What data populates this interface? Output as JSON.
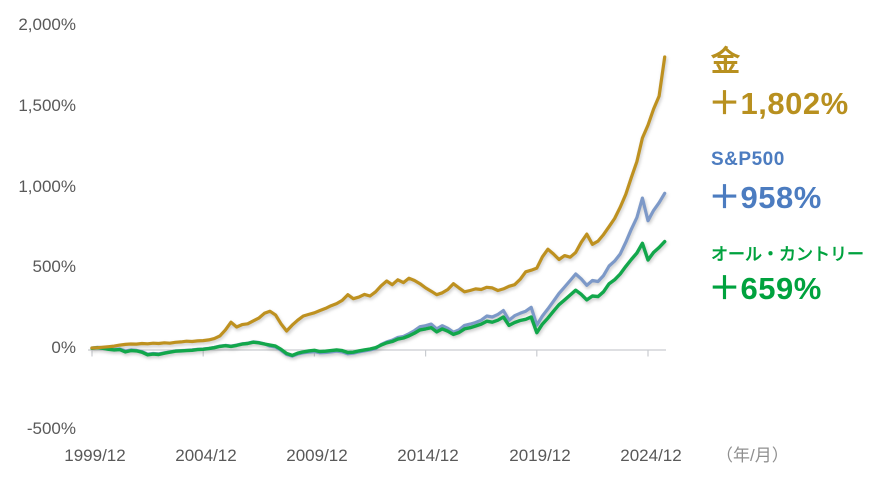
{
  "chart_data": {
    "type": "line",
    "title": "",
    "x_start": 2000.0,
    "x_step_years": 0.25,
    "x_axis": {
      "tick_labels": [
        "1999/12",
        "2004/12",
        "2009/12",
        "2014/12",
        "2019/12",
        "2024/12"
      ],
      "unit_label": "（年/月）"
    },
    "y_axis": {
      "range": [
        -500,
        2000
      ],
      "ticks": [
        {
          "value": 2000,
          "label": "2,000%"
        },
        {
          "value": 1500,
          "label": "1,500%"
        },
        {
          "value": 1000,
          "label": "1,000%"
        },
        {
          "value": 500,
          "label": "500%"
        },
        {
          "value": 0,
          "label": "0%"
        },
        {
          "value": -500,
          "label": "-500%"
        }
      ]
    },
    "grid": "zero-baseline-only",
    "legend_position": "right",
    "series": [
      {
        "name": "金",
        "gain_label": "＋1,802%",
        "line_color": "#BE9120",
        "label_color": "#B8901F",
        "values": [
          0,
          2,
          5,
          8,
          12,
          18,
          22,
          25,
          24,
          28,
          26,
          30,
          28,
          32,
          30,
          35,
          38,
          42,
          40,
          44,
          46,
          50,
          58,
          75,
          112,
          160,
          130,
          145,
          150,
          168,
          185,
          215,
          228,
          205,
          150,
          105,
          142,
          172,
          198,
          208,
          218,
          232,
          245,
          262,
          275,
          295,
          330,
          305,
          315,
          332,
          322,
          348,
          385,
          415,
          392,
          422,
          405,
          432,
          418,
          398,
          372,
          352,
          330,
          342,
          362,
          398,
          372,
          348,
          356,
          366,
          362,
          376,
          372,
          356,
          366,
          382,
          392,
          425,
          472,
          482,
          495,
          565,
          612,
          582,
          548,
          572,
          562,
          592,
          655,
          705,
          642,
          662,
          702,
          752,
          802,
          872,
          952,
          1055,
          1155,
          1300,
          1380,
          1480,
          1560,
          1802
        ]
      },
      {
        "name": "S&P500",
        "gain_label": "＋958%",
        "line_color": "#7D99C8",
        "label_color": "#4C7CC0",
        "values": [
          0,
          4,
          2,
          -4,
          -8,
          -6,
          -18,
          -12,
          -15,
          -22,
          -38,
          -34,
          -36,
          -30,
          -24,
          -18,
          -16,
          -14,
          -12,
          -8,
          -6,
          -2,
          4,
          12,
          16,
          12,
          18,
          26,
          30,
          38,
          34,
          26,
          12,
          6,
          -14,
          -40,
          -50,
          -38,
          -30,
          -26,
          -22,
          -30,
          -28,
          -24,
          -20,
          -24,
          -36,
          -32,
          -24,
          -18,
          -12,
          -4,
          22,
          38,
          48,
          65,
          72,
          88,
          108,
          132,
          138,
          148,
          118,
          138,
          122,
          98,
          112,
          140,
          148,
          158,
          172,
          198,
          192,
          208,
          232,
          172,
          200,
          215,
          228,
          252,
          142,
          198,
          242,
          290,
          338,
          378,
          418,
          458,
          428,
          388,
          418,
          412,
          448,
          508,
          538,
          582,
          655,
          735,
          808,
          928,
          788,
          852,
          900,
          958
        ]
      },
      {
        "name": "オール・カントリー",
        "gain_label": "＋659%",
        "line_color": "#12A74B",
        "label_color": "#00A23E",
        "values": [
          -2,
          2,
          -2,
          -8,
          -12,
          -10,
          -24,
          -16,
          -18,
          -26,
          -42,
          -38,
          -40,
          -32,
          -26,
          -20,
          -18,
          -16,
          -14,
          -10,
          -8,
          -4,
          2,
          10,
          14,
          10,
          16,
          24,
          28,
          36,
          32,
          25,
          18,
          12,
          -8,
          -34,
          -46,
          -32,
          -24,
          -18,
          -14,
          -22,
          -20,
          -16,
          -12,
          -16,
          -28,
          -26,
          -18,
          -12,
          -6,
          2,
          18,
          32,
          40,
          55,
          62,
          75,
          92,
          112,
          118,
          126,
          100,
          118,
          104,
          84,
          96,
          118,
          126,
          136,
          148,
          166,
          160,
          172,
          192,
          140,
          158,
          170,
          178,
          192,
          95,
          148,
          185,
          228,
          268,
          298,
          328,
          358,
          332,
          298,
          322,
          318,
          348,
          398,
          422,
          458,
          505,
          548,
          588,
          648,
          545,
          592,
          622,
          659
        ]
      }
    ]
  }
}
